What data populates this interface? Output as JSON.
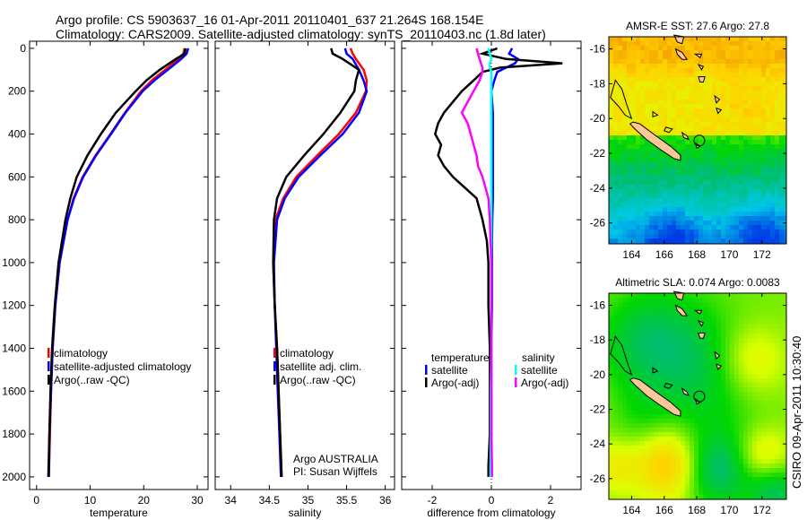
{
  "title": {
    "line1": "Argo profile: CS 5903637_16 01-Apr-2011 20110401_637 21.264S 168.154E",
    "line2": "Climatology: CARS2009. Satellite-adjusted climatology: synTS_20110403.nc (1.8d later)"
  },
  "side_label": "CSIRO 09-Apr-2011 10:30:40",
  "colors": {
    "red": "#ff0000",
    "blue": "#0000ff",
    "black": "#000000",
    "cyan": "#00ffff",
    "magenta": "#ff00ff",
    "land": "#ffc896"
  },
  "chart_data": [
    {
      "type": "line",
      "name": "temperature",
      "xlabel": "temperature",
      "ylabel": "",
      "xlim": [
        -1.3,
        32
      ],
      "ylim": [
        -33,
        2059
      ],
      "xticks": [
        0,
        10,
        20,
        30
      ],
      "yticks": [
        0,
        200,
        400,
        600,
        800,
        1000,
        1200,
        1400,
        1600,
        1800,
        2000
      ],
      "legend": [
        "climatology",
        "satellite-adjusted climatology",
        "Argo(..raw -QC)"
      ],
      "depth": [
        0,
        25,
        50,
        100,
        150,
        200,
        300,
        400,
        500,
        600,
        700,
        800,
        1000,
        1200,
        1400,
        1600,
        1800,
        2000
      ],
      "series": [
        {
          "name": "climatology",
          "color": "red",
          "values": [
            27.6,
            27.4,
            26.5,
            24.0,
            21.5,
            19.5,
            16.5,
            13.8,
            11.0,
            8.6,
            6.9,
            5.8,
            4.3,
            3.5,
            3.0,
            2.7,
            2.5,
            2.3
          ]
        },
        {
          "name": "satellite-adjusted climatology",
          "color": "blue",
          "values": [
            28.3,
            28.0,
            27.0,
            24.5,
            22.0,
            19.8,
            16.6,
            13.9,
            11.1,
            8.7,
            7.0,
            5.8,
            4.3,
            3.5,
            3.0,
            2.7,
            2.4,
            2.3
          ]
        },
        {
          "name": "Argo(..raw -QC)",
          "color": "black",
          "values": [
            27.8,
            27.6,
            26.0,
            23.0,
            20.5,
            18.5,
            14.8,
            12.0,
            9.5,
            7.5,
            6.3,
            5.4,
            4.1,
            3.4,
            2.9,
            2.6,
            2.4,
            2.2
          ]
        }
      ]
    },
    {
      "type": "line",
      "name": "salinity",
      "xlabel": "salinity",
      "xlim": [
        33.8,
        36.12
      ],
      "ylim": [
        -33,
        2059
      ],
      "xticks": [
        34,
        34.5,
        35,
        35.5,
        36
      ],
      "legend": [
        "climatology",
        "satellite adj. clim.",
        "Argo(..raw -QC)"
      ],
      "annotation": [
        "Argo AUSTRALIA",
        "PI: Susan Wijffels"
      ],
      "depth": [
        0,
        25,
        50,
        100,
        150,
        200,
        300,
        400,
        500,
        600,
        700,
        800,
        1000,
        1200,
        1400,
        1600,
        1800,
        2000
      ],
      "series": [
        {
          "name": "climatology",
          "color": "red",
          "values": [
            35.55,
            35.58,
            35.62,
            35.72,
            35.76,
            35.75,
            35.62,
            35.4,
            35.12,
            34.85,
            34.68,
            34.58,
            34.55,
            34.57,
            34.6,
            34.62,
            34.64,
            34.66
          ]
        },
        {
          "name": "satellite adj. clim.",
          "color": "blue",
          "values": [
            35.48,
            35.5,
            35.58,
            35.66,
            35.72,
            35.76,
            35.66,
            35.45,
            35.16,
            34.88,
            34.7,
            34.6,
            34.56,
            34.57,
            34.59,
            34.61,
            34.63,
            34.65
          ]
        },
        {
          "name": "Argo(..raw -QC)",
          "color": "black",
          "values": [
            35.3,
            35.32,
            35.45,
            35.66,
            35.62,
            35.6,
            35.42,
            35.2,
            34.95,
            34.72,
            34.6,
            34.56,
            34.55,
            34.57,
            34.6,
            34.62,
            34.64,
            34.66
          ]
        }
      ]
    },
    {
      "type": "line",
      "name": "difference",
      "xlabel": "difference from climatology",
      "xlim": [
        -3.03,
        3.03
      ],
      "ylim": [
        -33,
        2059
      ],
      "xticks": [
        -2,
        0,
        2
      ],
      "legend_titles": [
        "temperature",
        "salinity"
      ],
      "legend": [
        "satellite",
        "Argo(-adj)",
        "satellite",
        "Argo(-adj)"
      ],
      "depth": [
        0,
        25,
        50,
        70,
        90,
        110,
        150,
        200,
        300,
        350,
        400,
        450,
        500,
        550,
        600,
        650,
        700,
        800,
        900,
        1000,
        1200,
        1400,
        1600,
        1800,
        1950,
        2000
      ],
      "series": [
        {
          "name": "temperature satellite",
          "color": "blue",
          "values": [
            0.7,
            0.6,
            0.9,
            0.8,
            0.5,
            0.2,
            0.1,
            0.0,
            0.05,
            0.05,
            0.05,
            0.05,
            0.05,
            0.05,
            0.05,
            0.05,
            0.05,
            0.03,
            0.02,
            0.02,
            0.02,
            0.0,
            0.0,
            0.0,
            0.0,
            0.0
          ]
        },
        {
          "name": "temperature Argo(-adj)",
          "color": "black",
          "values": [
            0.2,
            -0.3,
            0.5,
            2.4,
            0.3,
            -0.3,
            -0.6,
            -1.0,
            -1.6,
            -1.8,
            -1.9,
            -1.7,
            -1.8,
            -1.6,
            -1.3,
            -0.9,
            -0.5,
            -0.3,
            -0.15,
            -0.1,
            -0.1,
            -0.05,
            -0.05,
            -0.05,
            -0.1,
            -0.1
          ]
        },
        {
          "name": "salinity satellite",
          "color": "cyan",
          "values": [
            -0.1,
            -0.05,
            0.0,
            -0.05,
            -0.05,
            0.0,
            0.0,
            0.0,
            0.0,
            0.0,
            0.0,
            0.0,
            0.0,
            0.0,
            0.0,
            0.0,
            0.0,
            0.0,
            0.0,
            0.0,
            0.0,
            0.0,
            -0.02,
            -0.02,
            -0.03,
            -0.03
          ]
        },
        {
          "name": "salinity Argo(-adj)",
          "color": "magenta",
          "values": [
            -0.5,
            -0.45,
            -0.4,
            -0.35,
            -0.3,
            -0.3,
            -0.4,
            -0.6,
            -1.0,
            -0.8,
            -0.7,
            -0.6,
            -0.5,
            -0.45,
            -0.3,
            -0.2,
            -0.1,
            -0.05,
            -0.03,
            0.0,
            0.0,
            0.0,
            0.0,
            0.0,
            0.02,
            0.02
          ]
        }
      ]
    },
    {
      "type": "heatmap",
      "name": "sst-map",
      "title": "AMSR-E SST: 27.6 Argo: 27.8",
      "xlim": [
        162.6,
        173.5
      ],
      "ylim": [
        -27.2,
        -15.3
      ],
      "xticks": [
        164,
        166,
        168,
        170,
        172
      ],
      "yticks": [
        -16,
        -18,
        -20,
        -22,
        -24,
        -26
      ]
    },
    {
      "type": "heatmap",
      "name": "sla-map",
      "title": "Altimetric SLA: 0.074 Argo: 0.0083",
      "xlim": [
        162.6,
        173.5
      ],
      "ylim": [
        -27.2,
        -15.3
      ],
      "xticks": [
        164,
        166,
        168,
        170,
        172
      ],
      "yticks": [
        -16,
        -18,
        -20,
        -22,
        -24,
        -26
      ]
    }
  ]
}
